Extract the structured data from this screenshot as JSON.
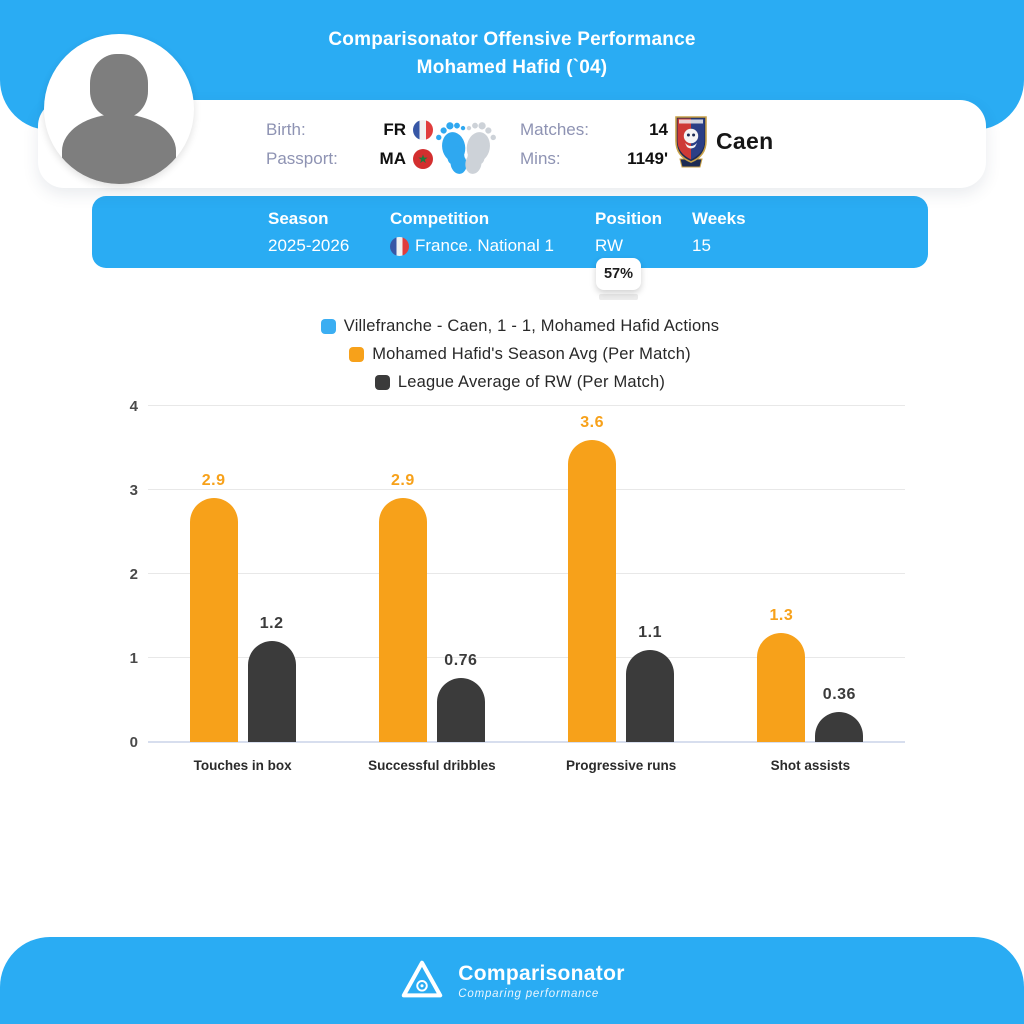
{
  "header": {
    "title_line1": "Comparisonator Offensive Performance",
    "title_line2": "Mohamed Hafid (`04)"
  },
  "player_card": {
    "birth_label": "Birth:",
    "birth_value": "FR",
    "passport_label": "Passport:",
    "passport_value": "MA",
    "matches_label": "Matches:",
    "matches_value": "14",
    "mins_label": "Mins:",
    "mins_value": "1149'",
    "club_name": "Caen"
  },
  "meta_bar": {
    "season_label": "Season",
    "season_value": "2025-2026",
    "competition_label": "Competition",
    "competition_value": "France. National 1",
    "position_label": "Position",
    "position_value": "RW",
    "weeks_label": "Weeks",
    "weeks_value": "15",
    "percent_badge": "57%"
  },
  "chart_data": {
    "type": "bar",
    "categories": [
      "Touches in box",
      "Successful dribbles",
      "Progressive runs",
      "Shot assists"
    ],
    "series": [
      {
        "name": "Villefranche - Caen, 1 - 1, Mohamed Hafid Actions",
        "color": "#3BAEF2",
        "values": [
          0,
          0,
          0,
          0
        ]
      },
      {
        "name": "Mohamed Hafid's Season Avg (Per Match)",
        "color": "#F7A11A",
        "values": [
          2.9,
          2.9,
          3.6,
          1.3
        ]
      },
      {
        "name": "League Average of RW (Per Match)",
        "color": "#3B3B3B",
        "values": [
          1.2,
          0.76,
          1.1,
          0.36
        ]
      }
    ],
    "ylim": [
      0,
      4
    ],
    "yticks": [
      0,
      1,
      2,
      3,
      4
    ],
    "grid": true,
    "legend_position": "top"
  },
  "footer": {
    "brand": "Comparisonator",
    "tagline": "Comparing performance"
  },
  "icons": {
    "avatar": "person-silhouette",
    "feet": "footprints-left-blue-right-gray",
    "birth_flag": "france-flag",
    "passport_flag": "morocco-flag",
    "passport_star": "★",
    "club_crest": "caen-crest",
    "logo": "comparisonator-triangle-logo"
  },
  "colors": {
    "accent_blue": "#2AACF3",
    "orange": "#F7A11A",
    "dark_gray": "#3B3B3B"
  }
}
